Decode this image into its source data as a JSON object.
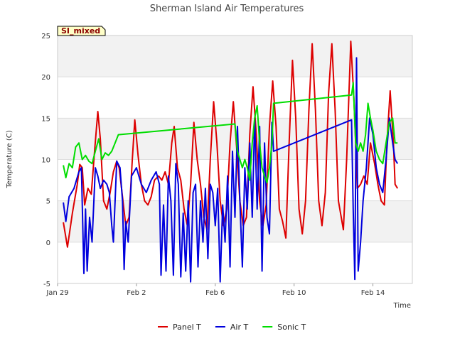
{
  "chart_data": {
    "type": "line",
    "title": "Sherman Island Air Temperatures",
    "xlabel": "Time",
    "ylabel": "Temperature (C)",
    "badge": "SI_mixed",
    "x_unit": "days",
    "xlim": [
      "2024-01-29",
      "2024-02-16"
    ],
    "ylim": [
      -5,
      25
    ],
    "y_ticks": [
      -5,
      0,
      5,
      10,
      15,
      20,
      25
    ],
    "x_ticks": [
      {
        "label": "Jan 29",
        "value": "2024-01-29"
      },
      {
        "label": "Feb 2",
        "value": "2024-02-02"
      },
      {
        "label": "Feb 6",
        "value": "2024-02-06"
      },
      {
        "label": "Feb 10",
        "value": "2024-02-10"
      },
      {
        "label": "Feb 14",
        "value": "2024-02-14"
      }
    ],
    "grid": "horizontal bands",
    "legend_position": "bottom",
    "series": [
      {
        "name": "Panel T",
        "color": "#dd0000",
        "points": [
          [
            "2024-01-29T07:00",
            2.4
          ],
          [
            "2024-01-29T12:00",
            -0.6
          ],
          [
            "2024-01-29T18:00",
            3.5
          ],
          [
            "2024-01-30T00:00",
            7.0
          ],
          [
            "2024-01-30T03:00",
            9.4
          ],
          [
            "2024-01-30T06:00",
            9.0
          ],
          [
            "2024-01-30T09:00",
            4.5
          ],
          [
            "2024-01-30T13:00",
            6.5
          ],
          [
            "2024-01-30T17:00",
            5.8
          ],
          [
            "2024-01-30T21:00",
            11.0
          ],
          [
            "2024-01-31T01:00",
            15.8
          ],
          [
            "2024-01-31T04:00",
            12.5
          ],
          [
            "2024-01-31T08:00",
            5.0
          ],
          [
            "2024-01-31T12:00",
            4.0
          ],
          [
            "2024-01-31T16:00",
            6.0
          ],
          [
            "2024-01-31T20:00",
            8.5
          ],
          [
            "2024-02-01T00:00",
            9.8
          ],
          [
            "2024-02-01T03:00",
            9.0
          ],
          [
            "2024-02-01T07:00",
            5.5
          ],
          [
            "2024-02-01T11:00",
            2.0
          ],
          [
            "2024-02-01T15:00",
            3.0
          ],
          [
            "2024-02-01T19:00",
            10.0
          ],
          [
            "2024-02-01T22:00",
            14.8
          ],
          [
            "2024-02-02T02:00",
            10.5
          ],
          [
            "2024-02-02T06:00",
            7.0
          ],
          [
            "2024-02-02T10:00",
            5.0
          ],
          [
            "2024-02-02T14:00",
            4.5
          ],
          [
            "2024-02-02T18:00",
            5.5
          ],
          [
            "2024-02-02T22:00",
            7.5
          ],
          [
            "2024-02-03T03:00",
            8.0
          ],
          [
            "2024-02-03T07:00",
            7.5
          ],
          [
            "2024-02-03T11:00",
            8.5
          ],
          [
            "2024-02-03T15:00",
            7.0
          ],
          [
            "2024-02-03T19:00",
            12.0
          ],
          [
            "2024-02-03T22:00",
            14.0
          ],
          [
            "2024-02-04T02:00",
            9.0
          ],
          [
            "2024-02-04T06:00",
            7.5
          ],
          [
            "2024-02-04T10:00",
            4.0
          ],
          [
            "2024-02-04T14:00",
            2.0
          ],
          [
            "2024-02-04T18:00",
            7.0
          ],
          [
            "2024-02-04T22:00",
            14.5
          ],
          [
            "2024-02-05T02:00",
            10.0
          ],
          [
            "2024-02-05T06:00",
            7.0
          ],
          [
            "2024-02-05T10:00",
            3.0
          ],
          [
            "2024-02-05T14:00",
            1.5
          ],
          [
            "2024-02-05T18:00",
            10.0
          ],
          [
            "2024-02-05T22:00",
            17.0
          ],
          [
            "2024-02-06T02:00",
            12.0
          ],
          [
            "2024-02-06T06:00",
            5.0
          ],
          [
            "2024-02-06T10:00",
            2.0
          ],
          [
            "2024-02-06T14:00",
            4.0
          ],
          [
            "2024-02-06T18:00",
            12.0
          ],
          [
            "2024-02-06T22:00",
            17.0
          ],
          [
            "2024-02-07T02:00",
            11.5
          ],
          [
            "2024-02-07T06:00",
            5.0
          ],
          [
            "2024-02-07T10:00",
            2.0
          ],
          [
            "2024-02-07T14:00",
            3.0
          ],
          [
            "2024-02-07T18:00",
            13.0
          ],
          [
            "2024-02-07T22:00",
            18.8
          ],
          [
            "2024-02-08T02:00",
            13.0
          ],
          [
            "2024-02-08T06:00",
            5.0
          ],
          [
            "2024-02-08T10:00",
            2.0
          ],
          [
            "2024-02-08T14:00",
            4.5
          ],
          [
            "2024-02-08T18:00",
            14.0
          ],
          [
            "2024-02-08T22:00",
            19.5
          ],
          [
            "2024-02-09T02:00",
            14.0
          ],
          [
            "2024-02-09T06:00",
            4.0
          ],
          [
            "2024-02-09T10:00",
            2.5
          ],
          [
            "2024-02-09T14:00",
            0.5
          ],
          [
            "2024-02-09T18:00",
            12.0
          ],
          [
            "2024-02-09T22:00",
            22.0
          ],
          [
            "2024-02-10T02:00",
            15.0
          ],
          [
            "2024-02-10T06:00",
            4.0
          ],
          [
            "2024-02-10T10:00",
            1.0
          ],
          [
            "2024-02-10T14:00",
            5.0
          ],
          [
            "2024-02-10T18:00",
            16.0
          ],
          [
            "2024-02-10T22:00",
            24.0
          ],
          [
            "2024-02-11T02:00",
            16.0
          ],
          [
            "2024-02-11T06:00",
            5.0
          ],
          [
            "2024-02-11T10:00",
            2.0
          ],
          [
            "2024-02-11T14:00",
            6.0
          ],
          [
            "2024-02-11T18:00",
            18.0
          ],
          [
            "2024-02-11T22:00",
            24.0
          ],
          [
            "2024-02-12T02:00",
            16.0
          ],
          [
            "2024-02-12T06:00",
            5.0
          ],
          [
            "2024-02-12T12:00",
            1.5
          ],
          [
            "2024-02-12T16:00",
            10.0
          ],
          [
            "2024-02-12T21:00",
            24.3
          ],
          [
            "2024-02-13T01:00",
            17.0
          ],
          [
            "2024-02-13T05:00",
            6.5
          ],
          [
            "2024-02-13T09:00",
            7.0
          ],
          [
            "2024-02-13T13:00",
            8.0
          ],
          [
            "2024-02-13T17:00",
            7.0
          ],
          [
            "2024-02-13T21:00",
            12.0
          ],
          [
            "2024-02-14T02:00",
            9.5
          ],
          [
            "2024-02-14T06:00",
            7.0
          ],
          [
            "2024-02-14T10:00",
            5.0
          ],
          [
            "2024-02-14T14:00",
            4.5
          ],
          [
            "2024-02-14T17:00",
            12.0
          ],
          [
            "2024-02-14T21:00",
            18.3
          ],
          [
            "2024-02-15T01:00",
            12.0
          ],
          [
            "2024-02-15T03:00",
            7.0
          ],
          [
            "2024-02-15T06:00",
            6.5
          ]
        ]
      },
      {
        "name": "Air T",
        "color": "#0000dd",
        "points": [
          [
            "2024-01-29T07:00",
            4.8
          ],
          [
            "2024-01-29T10:00",
            2.5
          ],
          [
            "2024-01-29T14:00",
            5.5
          ],
          [
            "2024-01-29T20:00",
            6.5
          ],
          [
            "2024-01-30T02:00",
            8.5
          ],
          [
            "2024-01-30T05:00",
            9.0
          ],
          [
            "2024-01-30T08:00",
            -3.8
          ],
          [
            "2024-01-30T10:00",
            4.0
          ],
          [
            "2024-01-30T12:00",
            -3.5
          ],
          [
            "2024-01-30T15:00",
            3.0
          ],
          [
            "2024-01-30T18:00",
            0.0
          ],
          [
            "2024-01-30T22:00",
            9.0
          ],
          [
            "2024-01-31T01:00",
            8.0
          ],
          [
            "2024-01-31T04:00",
            6.5
          ],
          [
            "2024-01-31T08:00",
            7.5
          ],
          [
            "2024-01-31T12:00",
            7.0
          ],
          [
            "2024-01-31T15:00",
            6.0
          ],
          [
            "2024-01-31T18:00",
            2.0
          ],
          [
            "2024-01-31T20:00",
            0.0
          ],
          [
            "2024-02-01T00:00",
            9.8
          ],
          [
            "2024-02-01T04:00",
            9.0
          ],
          [
            "2024-02-01T07:00",
            5.0
          ],
          [
            "2024-02-01T09:00",
            -3.3
          ],
          [
            "2024-02-01T11:00",
            2.5
          ],
          [
            "2024-02-01T14:00",
            0.0
          ],
          [
            "2024-02-01T18:00",
            8.0
          ],
          [
            "2024-02-02T00:00",
            9.0
          ],
          [
            "2024-02-02T06:00",
            7.0
          ],
          [
            "2024-02-02T12:00",
            6.0
          ],
          [
            "2024-02-02T18:00",
            7.5
          ],
          [
            "2024-02-03T00:00",
            8.5
          ],
          [
            "2024-02-03T04:00",
            7.0
          ],
          [
            "2024-02-03T06:00",
            -4.0
          ],
          [
            "2024-02-03T09:00",
            4.5
          ],
          [
            "2024-02-03T12:00",
            -3.5
          ],
          [
            "2024-02-03T15:00",
            8.0
          ],
          [
            "2024-02-03T18:00",
            5.0
          ],
          [
            "2024-02-03T21:00",
            -4.0
          ],
          [
            "2024-02-04T00:00",
            9.5
          ],
          [
            "2024-02-04T03:00",
            7.0
          ],
          [
            "2024-02-04T06:00",
            -4.2
          ],
          [
            "2024-02-04T09:00",
            3.5
          ],
          [
            "2024-02-04T12:00",
            -3.5
          ],
          [
            "2024-02-04T15:00",
            5.0
          ],
          [
            "2024-02-04T18:00",
            -4.8
          ],
          [
            "2024-02-04T21:00",
            6.0
          ],
          [
            "2024-02-05T00:00",
            7.0
          ],
          [
            "2024-02-05T03:00",
            -3.0
          ],
          [
            "2024-02-05T06:00",
            5.0
          ],
          [
            "2024-02-05T09:00",
            0.0
          ],
          [
            "2024-02-05T12:00",
            6.5
          ],
          [
            "2024-02-05T15:00",
            -2.0
          ],
          [
            "2024-02-05T18:00",
            7.0
          ],
          [
            "2024-02-05T21:00",
            6.0
          ],
          [
            "2024-02-06T00:00",
            2.0
          ],
          [
            "2024-02-06T03:00",
            6.5
          ],
          [
            "2024-02-06T06:00",
            -4.8
          ],
          [
            "2024-02-06T09:00",
            4.5
          ],
          [
            "2024-02-06T12:00",
            0.0
          ],
          [
            "2024-02-06T15:00",
            8.0
          ],
          [
            "2024-02-06T18:00",
            -3.0
          ],
          [
            "2024-02-06T21:00",
            11.0
          ],
          [
            "2024-02-07T00:00",
            3.0
          ],
          [
            "2024-02-07T03:00",
            14.0
          ],
          [
            "2024-02-07T06:00",
            5.0
          ],
          [
            "2024-02-07T09:00",
            -3.0
          ],
          [
            "2024-02-07T12:00",
            9.0
          ],
          [
            "2024-02-07T15:00",
            4.0
          ],
          [
            "2024-02-07T18:00",
            12.0
          ],
          [
            "2024-02-07T21:00",
            3.0
          ],
          [
            "2024-02-08T00:00",
            15.0
          ],
          [
            "2024-02-08T03:00",
            4.0
          ],
          [
            "2024-02-08T06:00",
            14.0
          ],
          [
            "2024-02-08T09:00",
            -3.5
          ],
          [
            "2024-02-08T12:00",
            12.0
          ],
          [
            "2024-02-08T15:00",
            3.0
          ],
          [
            "2024-02-08T18:00",
            1.0
          ],
          [
            "2024-02-08T21:00",
            14.5
          ],
          [
            "2024-02-08T23:00",
            11.0
          ],
          [
            "2024-02-12T22:00",
            14.8
          ],
          [
            "2024-02-13T00:00",
            4.0
          ],
          [
            "2024-02-13T02:00",
            -4.5
          ],
          [
            "2024-02-13T04:00",
            22.3
          ],
          [
            "2024-02-13T06:00",
            -3.5
          ],
          [
            "2024-02-13T09:00",
            0.0
          ],
          [
            "2024-02-13T12:00",
            5.0
          ],
          [
            "2024-02-13T16:00",
            9.0
          ],
          [
            "2024-02-13T20:00",
            15.0
          ],
          [
            "2024-02-14T00:00",
            13.0
          ],
          [
            "2024-02-14T04:00",
            9.0
          ],
          [
            "2024-02-14T08:00",
            7.0
          ],
          [
            "2024-02-14T12:00",
            6.0
          ],
          [
            "2024-02-14T16:00",
            10.0
          ],
          [
            "2024-02-14T20:00",
            15.0
          ],
          [
            "2024-02-15T00:00",
            12.0
          ],
          [
            "2024-02-15T03:00",
            10.0
          ],
          [
            "2024-02-15T06:00",
            9.5
          ]
        ]
      },
      {
        "name": "Sonic T",
        "color": "#00dd00",
        "points": [
          [
            "2024-01-29T07:00",
            9.3
          ],
          [
            "2024-01-29T10:00",
            7.8
          ],
          [
            "2024-01-29T14:00",
            9.5
          ],
          [
            "2024-01-29T18:00",
            9.0
          ],
          [
            "2024-01-29T22:00",
            11.5
          ],
          [
            "2024-01-30T02:00",
            12.0
          ],
          [
            "2024-01-30T06:00",
            10.0
          ],
          [
            "2024-01-30T10:00",
            10.5
          ],
          [
            "2024-01-30T14:00",
            9.8
          ],
          [
            "2024-01-30T18:00",
            9.5
          ],
          [
            "2024-01-30T22:00",
            11.0
          ],
          [
            "2024-01-31T02:00",
            12.5
          ],
          [
            "2024-01-31T06:00",
            10.0
          ],
          [
            "2024-01-31T10:00",
            10.8
          ],
          [
            "2024-01-31T14:00",
            10.5
          ],
          [
            "2024-01-31T18:00",
            11.0
          ],
          [
            "2024-01-31T22:00",
            12.0
          ],
          [
            "2024-02-01T02:00",
            13.0
          ],
          [
            "2024-02-07T00:00",
            14.3
          ],
          [
            "2024-02-07T03:00",
            11.0
          ],
          [
            "2024-02-07T06:00",
            10.0
          ],
          [
            "2024-02-07T09:00",
            9.0
          ],
          [
            "2024-02-07T12:00",
            10.0
          ],
          [
            "2024-02-07T15:00",
            9.0
          ],
          [
            "2024-02-07T18:00",
            7.5
          ],
          [
            "2024-02-07T21:00",
            12.0
          ],
          [
            "2024-02-08T00:00",
            15.0
          ],
          [
            "2024-02-08T03:00",
            16.5
          ],
          [
            "2024-02-08T06:00",
            12.0
          ],
          [
            "2024-02-08T09:00",
            9.0
          ],
          [
            "2024-02-08T12:00",
            8.0
          ],
          [
            "2024-02-08T15:00",
            7.2
          ],
          [
            "2024-02-08T18:00",
            9.0
          ],
          [
            "2024-02-08T21:00",
            12.0
          ],
          [
            "2024-02-08T23:00",
            16.8
          ],
          [
            "2024-02-12T22:00",
            17.8
          ],
          [
            "2024-02-13T00:00",
            19.3
          ],
          [
            "2024-02-13T03:00",
            12.0
          ],
          [
            "2024-02-13T06:00",
            11.0
          ],
          [
            "2024-02-13T09:00",
            12.0
          ],
          [
            "2024-02-13T12:00",
            11.0
          ],
          [
            "2024-02-13T15:00",
            13.0
          ],
          [
            "2024-02-13T18:00",
            16.8
          ],
          [
            "2024-02-13T21:00",
            15.0
          ],
          [
            "2024-02-14T00:00",
            13.5
          ],
          [
            "2024-02-14T04:00",
            11.0
          ],
          [
            "2024-02-14T08:00",
            10.0
          ],
          [
            "2024-02-14T12:00",
            9.5
          ],
          [
            "2024-02-14T16:00",
            12.0
          ],
          [
            "2024-02-14T20:00",
            14.5
          ],
          [
            "2024-02-15T00:00",
            15.0
          ],
          [
            "2024-02-15T03:00",
            12.0
          ],
          [
            "2024-02-15T06:00",
            12.0
          ]
        ]
      }
    ]
  }
}
